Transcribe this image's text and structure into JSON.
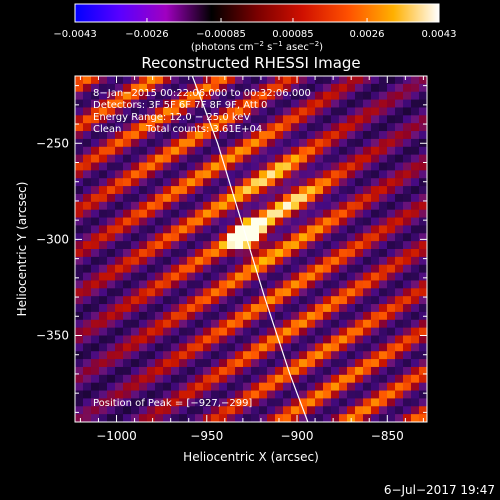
{
  "chart_data": {
    "type": "heatmap",
    "title": "Reconstructed RHESSI Image",
    "xlabel": "Heliocentric X (arcsec)",
    "ylabel": "Heliocentric Y (arcsec)",
    "xlim": [
      -1023,
      -828
    ],
    "ylim": [
      -395,
      -215
    ],
    "x_ticks": [
      -1000,
      -950,
      -900,
      -850
    ],
    "y_ticks": [
      -350,
      -300,
      -250
    ],
    "x_tick_labels": [
      "−1000",
      "−950",
      "−900",
      "−850"
    ],
    "y_tick_labels": [
      "−350",
      "−300",
      "−250"
    ],
    "colorbar": {
      "min": -0.0043,
      "max": 0.0043,
      "ticks": [
        -0.0043,
        -0.0026,
        -0.00085,
        0.00085,
        0.0026,
        0.0043
      ],
      "tick_labels": [
        "−0.0043",
        "−0.0026",
        "−0.00085",
        "0.00085",
        "0.0026",
        "0.0043"
      ],
      "colors": [
        "#0000ff",
        "#5a00ff",
        "#a000c0",
        "#000000",
        "#7a0000",
        "#d01000",
        "#ff5000",
        "#ffb000",
        "#ffffff"
      ],
      "unit_parts": [
        "(photons cm",
        "−2",
        " s",
        "−1",
        " asec",
        "−2",
        ")"
      ]
    },
    "annotations": {
      "time_range": "8−Jan−2015 00:22:06.000 to 00:32:06.000",
      "detectors": "Detectors: 3F 5F 6F 7F 8F 9F, Att 0",
      "energy": "Energy Range: 12.0 − 25.0 keV",
      "clean": "Clean",
      "counts": "Total counts: 3.61E+04",
      "peak": "Position of Peak = [−927,−299]"
    },
    "peak": {
      "x": -927,
      "y": -299
    },
    "limb": [
      [
        -958,
        -215
      ],
      [
        -944,
        -250
      ],
      [
        -931,
        -290
      ],
      [
        -918,
        -330
      ],
      [
        -904,
        -370
      ],
      [
        -894,
        -395
      ]
    ]
  },
  "footer": {
    "date": "6−Jul−2017 19:47"
  }
}
